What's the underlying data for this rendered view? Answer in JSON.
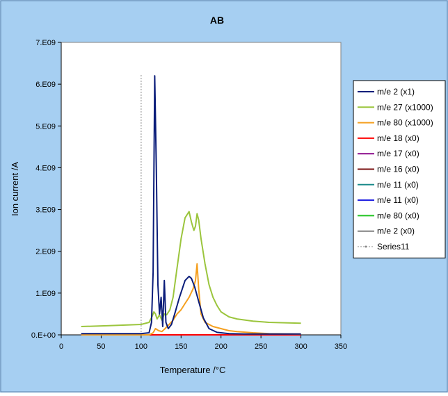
{
  "chart_data": {
    "type": "line",
    "title": "AB",
    "xlabel": "Temperature /°C",
    "ylabel": "Ion current /A",
    "xlim": [
      0,
      350
    ],
    "ylim": [
      0,
      7000000000
    ],
    "x_ticks": [
      0,
      50,
      100,
      150,
      200,
      250,
      300,
      350
    ],
    "y_ticks": [
      0,
      1000000000,
      2000000000,
      3000000000,
      4000000000,
      5000000000,
      6000000000,
      7000000000
    ],
    "x_tick_labels": [
      "0",
      "50",
      "100",
      "150",
      "200",
      "250",
      "300",
      "350"
    ],
    "y_tick_labels": [
      "0.E+00",
      "1.E09",
      "2.E09",
      "3.E09",
      "4.E09",
      "5.E09",
      "6.E09",
      "7.E09"
    ],
    "grid": false,
    "legend_position": "right",
    "colors": {
      "outer_background": "#a6cff2",
      "plot_background": "#ffffff"
    },
    "series": [
      {
        "name": "m/e 2 (x1)",
        "color": "#0b1d7a",
        "dash": "solid",
        "x": [
          25,
          100,
          110,
          113,
          115,
          117,
          119,
          121,
          123,
          125,
          127,
          129,
          131,
          134,
          138,
          142,
          148,
          155,
          160,
          163,
          167,
          172,
          178,
          185,
          195,
          210,
          230,
          260,
          300
        ],
        "y": [
          30000000,
          30000000,
          50000000,
          300000000,
          1500000000,
          6200000000,
          4000000000,
          1200000000,
          500000000,
          900000000,
          200000000,
          1300000000,
          300000000,
          150000000,
          250000000,
          500000000,
          900000000,
          1300000000,
          1400000000,
          1350000000,
          1150000000,
          800000000,
          400000000,
          150000000,
          60000000,
          30000000,
          20000000,
          20000000,
          20000000
        ]
      },
      {
        "name": "m/e 27 (x1000)",
        "color": "#9bc53d",
        "dash": "solid",
        "x": [
          25,
          60,
          100,
          110,
          114,
          116,
          118,
          120,
          123,
          126,
          129,
          132,
          136,
          140,
          145,
          150,
          155,
          160,
          163,
          166,
          168,
          170,
          172,
          175,
          180,
          185,
          190,
          195,
          200,
          210,
          220,
          240,
          260,
          300
        ],
        "y": [
          200000000,
          220000000,
          250000000,
          300000000,
          450000000,
          550000000,
          500000000,
          380000000,
          480000000,
          350000000,
          500000000,
          480000000,
          600000000,
          900000000,
          1600000000,
          2300000000,
          2800000000,
          2950000000,
          2700000000,
          2500000000,
          2600000000,
          2900000000,
          2750000000,
          2300000000,
          1700000000,
          1200000000,
          900000000,
          700000000,
          550000000,
          430000000,
          380000000,
          330000000,
          300000000,
          280000000
        ]
      },
      {
        "name": "m/e 80 (x1000)",
        "color": "#f5a020",
        "dash": "solid",
        "x": [
          25,
          110,
          115,
          118,
          122,
          126,
          130,
          135,
          140,
          145,
          150,
          155,
          160,
          165,
          168,
          170,
          172,
          175,
          180,
          190,
          200,
          210,
          220,
          240,
          260,
          300
        ],
        "y": [
          0,
          0,
          50000000,
          150000000,
          100000000,
          80000000,
          150000000,
          250000000,
          350000000,
          500000000,
          600000000,
          750000000,
          900000000,
          1100000000,
          1300000000,
          1700000000,
          1100000000,
          500000000,
          300000000,
          200000000,
          150000000,
          100000000,
          80000000,
          50000000,
          30000000,
          20000000
        ]
      },
      {
        "name": "m/e 18 (x0)",
        "color": "#ff0000",
        "dash": "solid",
        "x": [
          25,
          300
        ],
        "y": [
          0,
          0
        ]
      },
      {
        "name": "m/e 17 (x0)",
        "color": "#8a0a8a",
        "dash": "solid",
        "x": [
          25,
          300
        ],
        "y": [
          0,
          0
        ]
      },
      {
        "name": "m/e 16 (x0)",
        "color": "#7a1010",
        "dash": "solid",
        "x": [
          25,
          300
        ],
        "y": [
          0,
          0
        ]
      },
      {
        "name": "m/e 11 (x0)",
        "color": "#1a8a8a",
        "dash": "solid",
        "x": [
          25,
          300
        ],
        "y": [
          0,
          0
        ]
      },
      {
        "name": "m/e 11 (x0)",
        "color": "#1a1ae0",
        "dash": "solid",
        "x": [
          25,
          300
        ],
        "y": [
          0,
          0
        ]
      },
      {
        "name": "m/e 80 (x0)",
        "color": "#22c422",
        "dash": "solid",
        "x": [
          25,
          300
        ],
        "y": [
          0,
          0
        ]
      },
      {
        "name": "m/e 2 (x0)",
        "color": "#808080",
        "dash": "solid",
        "x": [
          25,
          300
        ],
        "y": [
          0,
          0
        ]
      },
      {
        "name": "Series11",
        "color": "#888888",
        "dash": "dotted",
        "x": [
          100,
          100
        ],
        "y": [
          0,
          6250000000
        ]
      }
    ]
  }
}
